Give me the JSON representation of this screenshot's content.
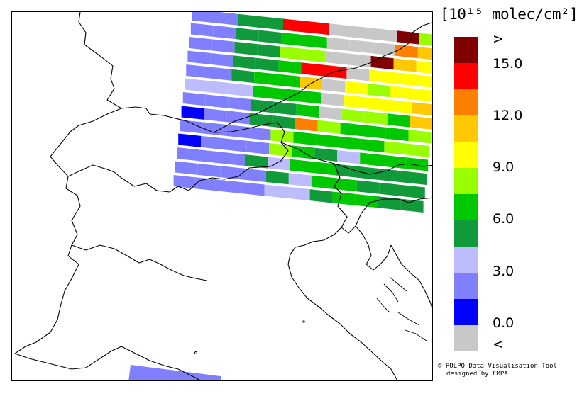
{
  "legend": {
    "unit": "[10¹⁵ molec/cm²]",
    "colors": [
      "#c8c8c8",
      "#0000ff",
      "#8080ff",
      "#bcbcff",
      "#119a3a",
      "#00c800",
      "#99ff00",
      "#ffff00",
      "#ffc800",
      "#ff7f00",
      "#ff0000",
      "#800000"
    ],
    "labels": [
      "<",
      "0.0",
      "3.0",
      "6.0",
      "9.0",
      "12.0",
      "15.0",
      ">"
    ]
  },
  "credit": {
    "line1": "© POLPO Data Visualisation Tool",
    "line2": "designed by EMPA"
  },
  "map": {
    "background": "#ffffff",
    "border_color": "#000000",
    "swath_rows": [
      [
        "#8080ff",
        "#8080ff",
        "#119a3a",
        "#119a3a",
        "#ff0000",
        "#ff0000",
        "#c8c8c8",
        "#c8c8c8",
        "#c8c8c8",
        "#800000",
        "#99ff00"
      ],
      [
        "#8080ff",
        "#8080ff",
        "#119a3a",
        "#119a3a",
        "#00c800",
        "#00c800",
        "#c8c8c8",
        "#c8c8c8",
        "#c8c8c8",
        "#ff7f00",
        "#ffc800"
      ],
      [
        "#8080ff",
        "#8080ff",
        "#119a3a",
        "#119a3a",
        "#99ff00",
        "#99ff00",
        "#c8c8c8",
        "#c8c8c8",
        "#800000",
        "#ffc800",
        "#ffff00"
      ],
      [
        "#8080ff",
        "#8080ff",
        "#119a3a",
        "#119a3a",
        "#00c800",
        "#ff0000",
        "#ff0000",
        "#c8c8c8",
        "#ffff00",
        "#ffff00",
        "#ffff00"
      ],
      [
        "#8080ff",
        "#8080ff",
        "#119a3a",
        "#00c800",
        "#00c800",
        "#ffc800",
        "#c8c8c8",
        "#ffff00",
        "#99ff00",
        "#ffff00",
        "#ffff00"
      ],
      [
        "#bcbcff",
        "#bcbcff",
        "#bcbcff",
        "#00c800",
        "#00c800",
        "#00c800",
        "#c8c8c8",
        "#ffff00",
        "#ffff00",
        "#ffff00",
        "#ffc800"
      ],
      [
        "#8080ff",
        "#8080ff",
        "#8080ff",
        "#119a3a",
        "#119a3a",
        "#00c800",
        "#c8c8c8",
        "#99ff00",
        "#99ff00",
        "#00c800",
        "#ffc800"
      ],
      [
        "#0000ff",
        "#8080ff",
        "#8080ff",
        "#119a3a",
        "#119a3a",
        "#ff7f00",
        "#99ff00",
        "#00c800",
        "#00c800",
        "#00c800",
        "#99ff00"
      ],
      [
        "#8080ff",
        "#8080ff",
        "#8080ff",
        "#8080ff",
        "#99ff00",
        "#00c800",
        "#00c800",
        "#00c800",
        "#00c800",
        "#99ff00",
        "#99ff00"
      ],
      [
        "#0000ff",
        "#8080ff",
        "#8080ff",
        "#8080ff",
        "#99ff00",
        "#00c800",
        "#119a3a",
        "#bcbcff",
        "#00c800",
        "#00c800",
        "#00c800"
      ],
      [
        "#8080ff",
        "#8080ff",
        "#8080ff",
        "#119a3a",
        "#bcbcff",
        "#00c800",
        "#00c800",
        "#119a3a",
        "#119a3a",
        "#119a3a",
        "#119a3a"
      ],
      [
        "#8080ff",
        "#8080ff",
        "#8080ff",
        "#8080ff",
        "#119a3a",
        "#bcbcff",
        "#00c800",
        "#00c800",
        "#119a3a",
        "#119a3a",
        "#119a3a"
      ],
      [
        "#8080ff",
        "#8080ff",
        "#8080ff",
        "#8080ff",
        "#bcbcff",
        "#bcbcff",
        "#119a3a",
        "#00c800",
        "#00c800",
        "#119a3a",
        "#119a3a"
      ]
    ],
    "south_swath_color": "#8080ff"
  }
}
